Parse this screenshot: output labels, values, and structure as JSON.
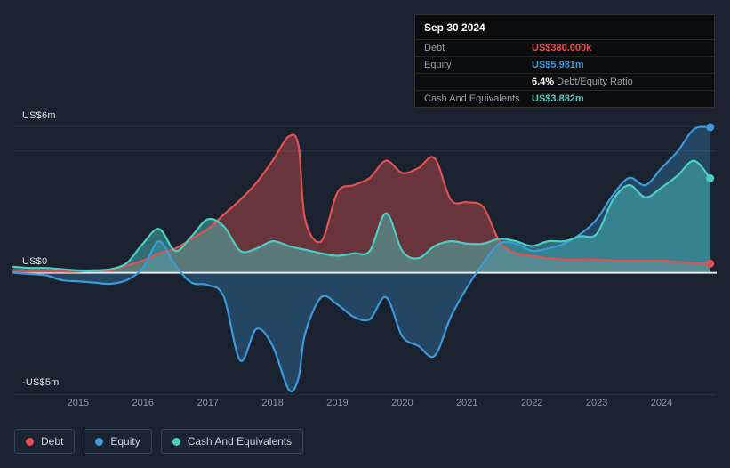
{
  "colors": {
    "background": "#1a2230",
    "grid": "#273140",
    "zero_line": "#e8eaed",
    "x_tick_text": "#8d96a5",
    "debt": "#e05252",
    "equity": "#3b9ad9",
    "cash": "#4ecdc4"
  },
  "tooltip": {
    "date": "Sep 30 2024",
    "debt_label": "Debt",
    "debt_value": "US$380.000k",
    "equity_label": "Equity",
    "equity_value": "US$5.981m",
    "ratio_value": "6.4%",
    "ratio_label": "Debt/Equity Ratio",
    "cash_label": "Cash And Equivalents",
    "cash_value": "US$3.882m"
  },
  "legend": {
    "items": [
      {
        "label": "Debt",
        "color": "#e05252"
      },
      {
        "label": "Equity",
        "color": "#3b9ad9"
      },
      {
        "label": "Cash And Equivalents",
        "color": "#4ecdc4"
      }
    ]
  },
  "chart_data": {
    "type": "area",
    "title": "",
    "xlabel": "",
    "ylabel": "",
    "units": "US$m",
    "legend_position": "bottom-left",
    "grid": true,
    "y_axis": {
      "top_label": "US$6m",
      "zero_label": "US$0",
      "bottom_label": "-US$5m"
    },
    "x_ticks": [
      2015,
      2016,
      2017,
      2018,
      2019,
      2020,
      2021,
      2022,
      2023,
      2024
    ],
    "xlim": [
      2014.0,
      2024.85
    ],
    "ylim": [
      -5.6,
      7.0
    ],
    "gridline_values": [
      6,
      5,
      -5
    ],
    "x": [
      2014.0,
      2014.25,
      2014.5,
      2014.75,
      2015.0,
      2015.25,
      2015.5,
      2015.75,
      2016.0,
      2016.25,
      2016.5,
      2016.75,
      2017.0,
      2017.25,
      2017.5,
      2017.75,
      2018.0,
      2018.25,
      2018.4,
      2018.5,
      2018.75,
      2019.0,
      2019.25,
      2019.5,
      2019.75,
      2020.0,
      2020.25,
      2020.5,
      2020.75,
      2021.0,
      2021.25,
      2021.5,
      2021.75,
      2022.0,
      2022.25,
      2022.5,
      2022.75,
      2023.0,
      2023.25,
      2023.5,
      2023.75,
      2024.0,
      2024.25,
      2024.5,
      2024.75
    ],
    "series": [
      {
        "name": "Debt",
        "color": "#e05252",
        "fill_opacity": 0.4,
        "values": [
          0.05,
          0.05,
          0.05,
          0.05,
          0.05,
          0.1,
          0.1,
          0.3,
          0.5,
          0.8,
          1.0,
          1.4,
          1.8,
          2.4,
          3.0,
          3.7,
          4.6,
          5.6,
          5.2,
          2.2,
          1.3,
          3.3,
          3.6,
          3.9,
          4.6,
          4.1,
          4.3,
          4.7,
          3.0,
          2.9,
          2.7,
          1.3,
          0.8,
          0.7,
          0.6,
          0.55,
          0.55,
          0.55,
          0.5,
          0.5,
          0.5,
          0.5,
          0.45,
          0.4,
          0.38
        ]
      },
      {
        "name": "Equity",
        "color": "#3b9ad9",
        "fill_opacity": 0.3,
        "values": [
          0.0,
          -0.05,
          -0.1,
          -0.3,
          -0.35,
          -0.4,
          -0.45,
          -0.3,
          0.2,
          1.3,
          0.3,
          -0.4,
          -0.5,
          -1.0,
          -3.6,
          -2.3,
          -3.0,
          -4.8,
          -4.3,
          -2.5,
          -1.0,
          -1.3,
          -1.8,
          -1.9,
          -1.0,
          -2.6,
          -3.0,
          -3.4,
          -1.8,
          -0.6,
          0.4,
          1.2,
          1.2,
          0.9,
          1.0,
          1.2,
          1.6,
          2.2,
          3.2,
          3.9,
          3.6,
          4.3,
          5.0,
          5.9,
          5.98
        ]
      },
      {
        "name": "Cash And Equivalents",
        "color": "#4ecdc4",
        "fill_opacity": 0.45,
        "values": [
          0.25,
          0.2,
          0.2,
          0.15,
          0.1,
          0.1,
          0.15,
          0.4,
          1.2,
          1.8,
          0.9,
          1.5,
          2.2,
          1.9,
          0.9,
          1.0,
          1.3,
          1.1,
          1.0,
          0.95,
          0.8,
          0.7,
          0.8,
          0.9,
          2.45,
          0.9,
          0.6,
          1.1,
          1.3,
          1.2,
          1.2,
          1.4,
          1.3,
          1.1,
          1.3,
          1.3,
          1.5,
          1.6,
          3.0,
          3.6,
          3.1,
          3.5,
          4.0,
          4.6,
          3.88
        ]
      }
    ]
  }
}
